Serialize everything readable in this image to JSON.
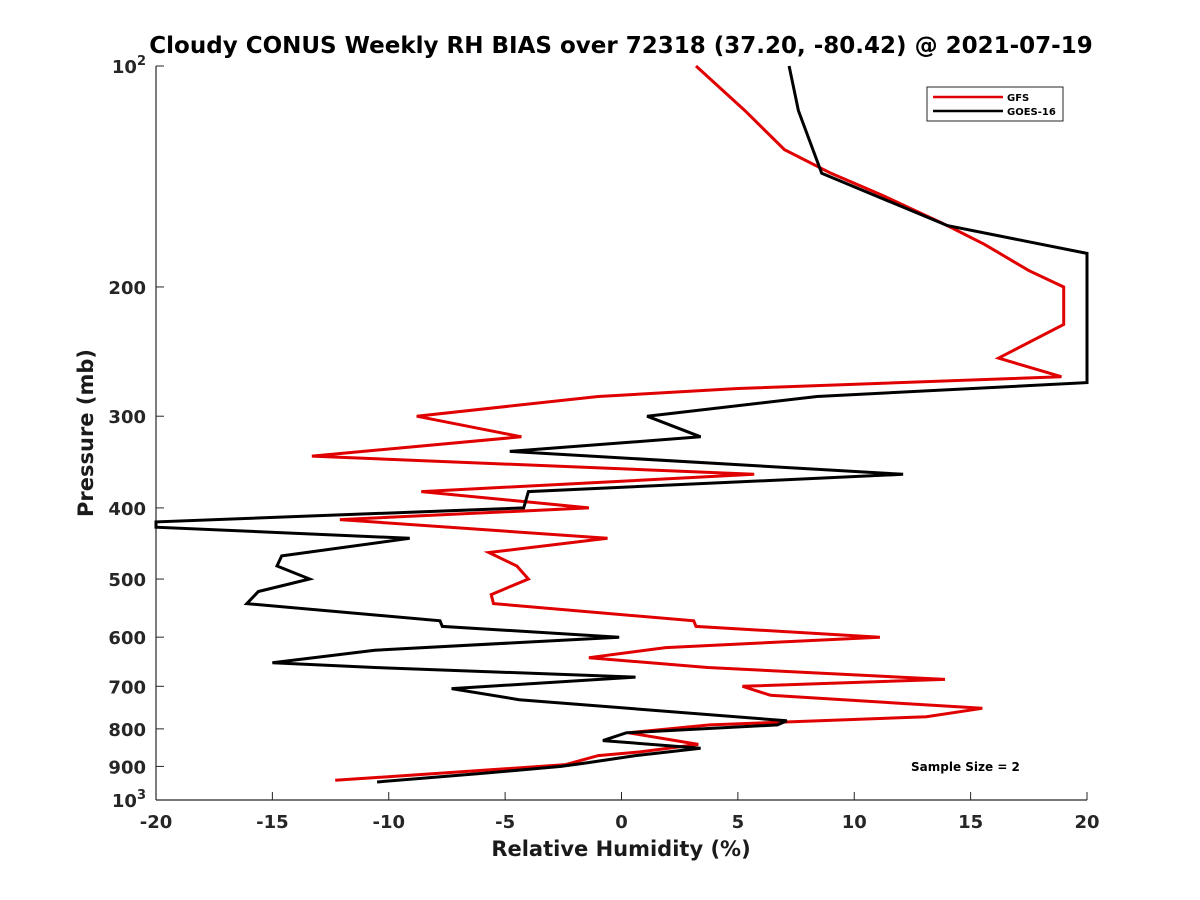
{
  "chart_data": {
    "type": "line",
    "title": "Cloudy CONUS Weekly RH BIAS over 72318 (37.20, -80.42) @ 2021-07-19",
    "xlabel": "Relative Humidity (%)",
    "ylabel": "Pressure (mb)",
    "xlim": [
      -20,
      20
    ],
    "ylim": [
      100,
      1000
    ],
    "yscale": "log",
    "y_reversed": true,
    "grid": false,
    "legend_position": "top-right",
    "x_ticks": [
      "-20",
      "-15",
      "-10",
      "-5",
      "0",
      "5",
      "10",
      "15",
      "20"
    ],
    "x_tick_values": [
      -20,
      -15,
      -10,
      -5,
      0,
      5,
      10,
      15,
      20
    ],
    "y_ticks": [
      {
        "value": 100,
        "label": "10",
        "sup": "2"
      },
      {
        "value": 200,
        "label": "200",
        "sup": ""
      },
      {
        "value": 300,
        "label": "300",
        "sup": ""
      },
      {
        "value": 400,
        "label": "400",
        "sup": ""
      },
      {
        "value": 500,
        "label": "500",
        "sup": ""
      },
      {
        "value": 600,
        "label": "600",
        "sup": ""
      },
      {
        "value": 700,
        "label": "700",
        "sup": ""
      },
      {
        "value": 800,
        "label": "800",
        "sup": ""
      },
      {
        "value": 900,
        "label": "900",
        "sup": ""
      },
      {
        "value": 1000,
        "label": "10",
        "sup": "3"
      }
    ],
    "series": [
      {
        "name": "GFS",
        "color": "#e00000",
        "points": [
          [
            3.2,
            100
          ],
          [
            5.3,
            115
          ],
          [
            7.0,
            130
          ],
          [
            9.0,
            140
          ],
          [
            11.2,
            150
          ],
          [
            14.0,
            165
          ],
          [
            15.6,
            175
          ],
          [
            17.5,
            190
          ],
          [
            19.0,
            200
          ],
          [
            19.0,
            225
          ],
          [
            16.2,
            250
          ],
          [
            18.9,
            265
          ],
          [
            5.0,
            275
          ],
          [
            -1.0,
            282
          ],
          [
            -8.8,
            300
          ],
          [
            -4.3,
            320
          ],
          [
            -13.3,
            340
          ],
          [
            5.7,
            360
          ],
          [
            -8.6,
            380
          ],
          [
            -1.4,
            400
          ],
          [
            -12.1,
            415
          ],
          [
            -0.6,
            440
          ],
          [
            -5.7,
            460
          ],
          [
            -4.5,
            480
          ],
          [
            -4.0,
            500
          ],
          [
            -5.6,
            525
          ],
          [
            -5.5,
            540
          ],
          [
            3.1,
            570
          ],
          [
            3.2,
            580
          ],
          [
            11.1,
            600
          ],
          [
            1.9,
            620
          ],
          [
            -1.4,
            640
          ],
          [
            3.7,
            660
          ],
          [
            13.9,
            685
          ],
          [
            5.2,
            700
          ],
          [
            6.4,
            720
          ],
          [
            15.5,
            750
          ],
          [
            13.1,
            770
          ],
          [
            3.8,
            790
          ],
          [
            0.3,
            810
          ],
          [
            3.3,
            840
          ],
          [
            0.8,
            860
          ],
          [
            -1.0,
            870
          ],
          [
            -2.4,
            895
          ],
          [
            -5.7,
            910
          ],
          [
            -12.3,
            940
          ]
        ]
      },
      {
        "name": "GOES-16",
        "color": "#000000",
        "points": [
          [
            7.2,
            100
          ],
          [
            7.6,
            115
          ],
          [
            8.6,
            140
          ],
          [
            14.0,
            165
          ],
          [
            20.0,
            180
          ],
          [
            20.0,
            270
          ],
          [
            8.4,
            282
          ],
          [
            1.1,
            300
          ],
          [
            3.4,
            320
          ],
          [
            -4.8,
            335
          ],
          [
            12.1,
            360
          ],
          [
            -4.0,
            380
          ],
          [
            -4.2,
            400
          ],
          [
            -20.0,
            418
          ],
          [
            -20.0,
            425
          ],
          [
            -9.1,
            440
          ],
          [
            -14.6,
            465
          ],
          [
            -14.8,
            480
          ],
          [
            -13.4,
            500
          ],
          [
            -15.6,
            520
          ],
          [
            -16.1,
            540
          ],
          [
            -7.8,
            570
          ],
          [
            -7.7,
            580
          ],
          [
            -0.1,
            600
          ],
          [
            -10.6,
            625
          ],
          [
            -15.0,
            650
          ],
          [
            -10.6,
            660
          ],
          [
            0.6,
            680
          ],
          [
            -7.3,
            705
          ],
          [
            -4.4,
            730
          ],
          [
            7.1,
            780
          ],
          [
            6.7,
            790
          ],
          [
            0.2,
            810
          ],
          [
            -0.8,
            830
          ],
          [
            3.4,
            850
          ],
          [
            0.6,
            870
          ],
          [
            -1.5,
            890
          ],
          [
            -2.6,
            900
          ],
          [
            -6.0,
            920
          ],
          [
            -10.5,
            945
          ]
        ]
      }
    ],
    "annotations": [
      "Sample Size = 2"
    ]
  }
}
